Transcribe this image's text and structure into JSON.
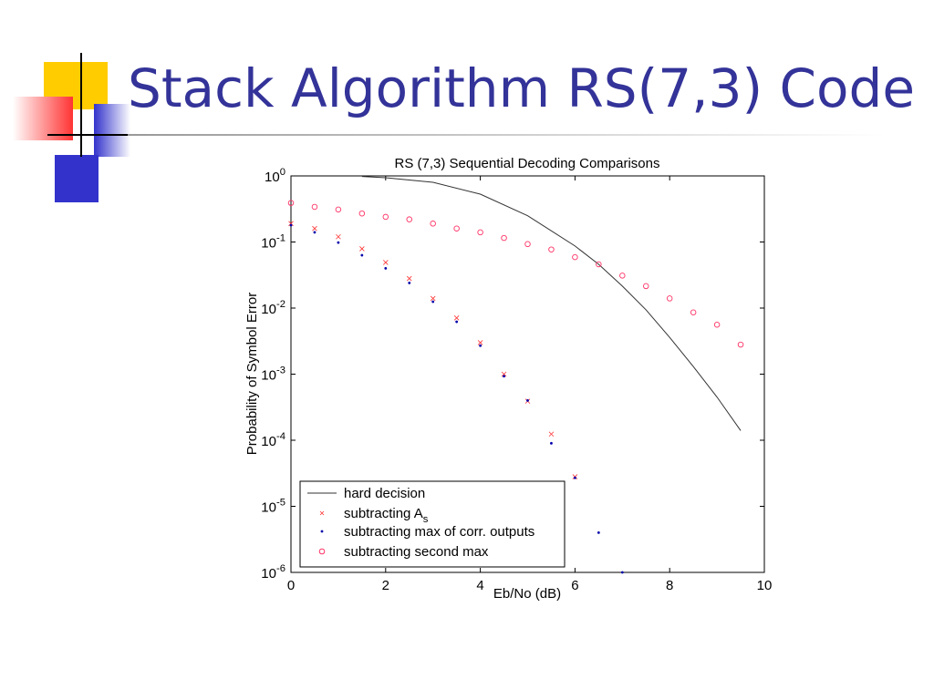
{
  "title": "Stack Algorithm RS(7,3) Code",
  "chart_data": {
    "type": "scatter",
    "title": "RS (7,3) Sequential Decoding Comparisons",
    "xlabel": "Eb/No (dB)",
    "ylabel": "Probability of Symbol Error",
    "xlim": [
      0,
      10
    ],
    "xticks": [
      0,
      2,
      4,
      6,
      8,
      10
    ],
    "ylim": [
      1e-06,
      1
    ],
    "yscale": "log",
    "yticks": [
      {
        "value": 1,
        "label": "10^0"
      },
      {
        "value": 0.1,
        "label": "10^-1"
      },
      {
        "value": 0.01,
        "label": "10^-2"
      },
      {
        "value": 0.001,
        "label": "10^-3"
      },
      {
        "value": 0.0001,
        "label": "10^-4"
      },
      {
        "value": 1e-05,
        "label": "10^-5"
      },
      {
        "value": 1e-06,
        "label": "10^-6"
      }
    ],
    "legend": "lower-left",
    "series": [
      {
        "name": "hard decision",
        "marker": "line",
        "color": "#333333",
        "x": [
          1.5,
          2,
          3,
          4,
          5,
          6,
          6.5,
          7,
          7.5,
          8,
          8.5,
          9,
          9.5
        ],
        "values": [
          0.98,
          0.94,
          0.8,
          0.53,
          0.25,
          0.087,
          0.046,
          0.0215,
          0.0094,
          0.0036,
          0.0013,
          0.00045,
          0.00014
        ]
      },
      {
        "name": "subtracting A_s",
        "marker": "x",
        "color": "#ff3333",
        "x": [
          0,
          0.5,
          1,
          1.5,
          2,
          2.5,
          3,
          3.5,
          4,
          4.5,
          5,
          5.5,
          6
        ],
        "values": [
          0.19,
          0.16,
          0.12,
          0.079,
          0.049,
          0.028,
          0.014,
          0.0071,
          0.003,
          0.001,
          0.00039,
          0.000124,
          2.8e-05
        ]
      },
      {
        "name": "subtracting max of corr. outputs",
        "marker": "dot",
        "color": "#0000aa",
        "x": [
          0,
          0.5,
          1,
          1.5,
          2,
          2.5,
          3,
          3.5,
          4,
          4.5,
          5,
          5.5,
          6,
          6.5,
          7
        ],
        "values": [
          0.18,
          0.14,
          0.098,
          0.063,
          0.04,
          0.024,
          0.0125,
          0.0062,
          0.0027,
          0.00093,
          0.0004,
          9e-05,
          2.7e-05,
          4e-06,
          1e-06
        ]
      },
      {
        "name": "subtracting second max",
        "marker": "circle",
        "color": "#ff3366",
        "x": [
          0,
          0.5,
          1,
          1.5,
          2,
          2.5,
          3,
          3.5,
          4,
          4.5,
          5,
          5.5,
          6,
          6.5,
          7,
          7.5,
          8,
          8.5,
          9,
          9.5
        ],
        "values": [
          0.39,
          0.34,
          0.31,
          0.27,
          0.24,
          0.22,
          0.19,
          0.16,
          0.14,
          0.115,
          0.093,
          0.077,
          0.059,
          0.046,
          0.031,
          0.0215,
          0.014,
          0.0086,
          0.0056,
          0.0028
        ]
      }
    ]
  }
}
